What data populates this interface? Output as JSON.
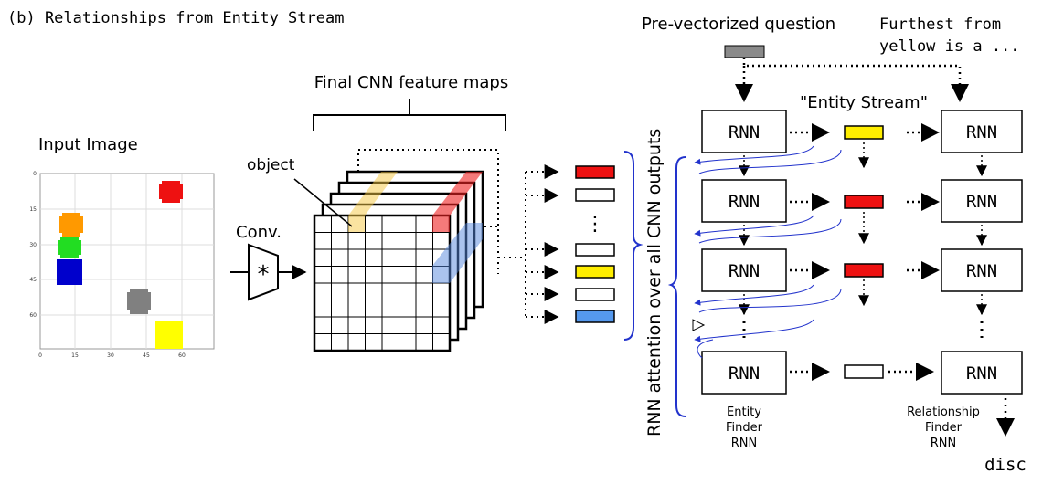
{
  "caption": "(b)  Relationships from Entity Stream",
  "input_image": {
    "label": "Input Image",
    "y_ticks": [
      "0",
      "15",
      "30",
      "45",
      "60"
    ],
    "x_ticks": [
      "0",
      "15",
      "30",
      "45",
      "60"
    ],
    "objects": [
      {
        "color": "#ee1111"
      },
      {
        "color": "#ff9900"
      },
      {
        "color": "#22dd22"
      },
      {
        "color": "#0000cc"
      },
      {
        "color": "#808080"
      },
      {
        "color": "#ffff00"
      }
    ]
  },
  "conv_label": "Conv.",
  "conv_symbol": "*",
  "feature_maps_label": "Final CNN feature maps",
  "object_label": "object",
  "vector_colors": [
    "#ee1111",
    "#ffffff",
    "#ffffff",
    "#ffee00",
    "#ffffff",
    "#5599ee"
  ],
  "vertical_ellipsis": "⋮",
  "attention_label": "RNN attention over all CNN outputs",
  "question_label": "Pre-vectorized question",
  "question_text": [
    "Furthest from",
    "yellow is a ..."
  ],
  "entity_stream_label": "\"Entity Stream\"",
  "rnn_label": "RNN",
  "entity_colors": [
    "#ffee00",
    "#ee1111",
    "#ee1111",
    "#ffffff"
  ],
  "entity_finder_label": [
    "Entity",
    "Finder",
    "RNN"
  ],
  "relationship_finder_label": [
    "Relationship",
    "Finder",
    "RNN"
  ],
  "output_word": "disc",
  "colors": {
    "feature_yellow": "#f5c842",
    "feature_red": "#ee2222",
    "feature_blue": "#5588dd",
    "attention_arrow": "#2233cc"
  }
}
